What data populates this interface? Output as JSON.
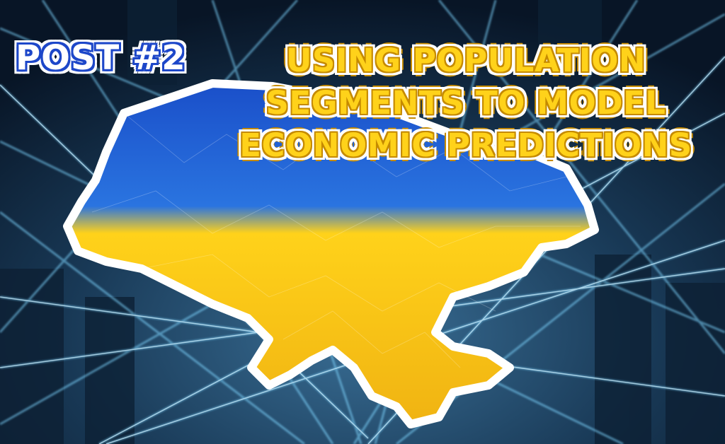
{
  "badge": {
    "text": "POST #2"
  },
  "headline": {
    "line1": "USING POPULATION",
    "line2": "SEGMENTS TO MODEL",
    "line3": "ECONOMIC PREDICTIONS"
  },
  "colors": {
    "background": "#0b1a2e",
    "network_lines": "#7fd6ff",
    "map_blue": "#1e63d6",
    "map_yellow": "#ffc61a",
    "map_outline": "#ffffff",
    "badge_text": "#ffffff",
    "badge_outline": "#1d47c9",
    "headline_fill": "#ffd21a",
    "headline_outline": "#c58a00"
  },
  "icons": {
    "map": "ukraine-map-flag-icon",
    "background": "network-lines-background"
  }
}
